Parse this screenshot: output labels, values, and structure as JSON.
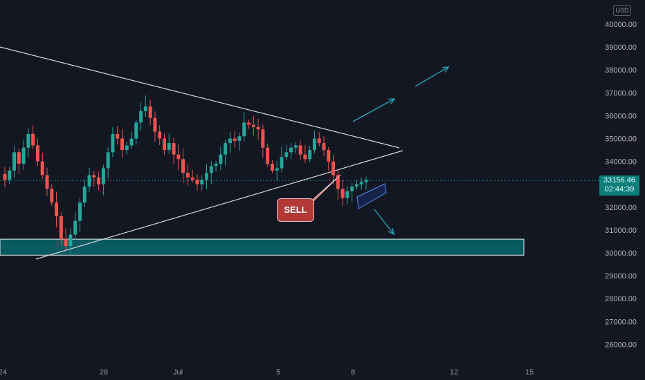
{
  "currency": "USD",
  "price_tag": {
    "price": "33156.46",
    "countdown": "02:44:39"
  },
  "annotation": {
    "text": "SELL"
  },
  "colors": {
    "background": "#131722",
    "bullish": "#26a69a",
    "bearish": "#ef5350",
    "accent": "#22a4b6",
    "zone": "#0a5a61"
  },
  "chart_data": {
    "type": "candlestick",
    "y_axis": {
      "ticks": [
        40000,
        39000,
        38000,
        37000,
        36000,
        35000,
        34000,
        33000,
        32000,
        31000,
        30000,
        29000,
        28000,
        27000,
        26000
      ],
      "tick_labels": [
        "40000.00",
        "39000.00",
        "38000.00",
        "37000.00",
        "36000.00",
        "35000.00",
        "34000.00",
        "33000.00",
        "32000.00",
        "31000.00",
        "30000.00",
        "29000.00",
        "28000.00",
        "27000.00",
        "26000.00"
      ],
      "range": [
        25000,
        41000
      ]
    },
    "x_axis": {
      "tick_labels": [
        "24",
        "28",
        "Jul",
        "5",
        "8",
        "12",
        "15"
      ]
    },
    "current_price": 33156.46,
    "support_zone": [
      29900,
      30600
    ],
    "candle_close_path": [
      33200,
      33600,
      34400,
      33900,
      34600,
      35200,
      34700,
      34000,
      33400,
      32800,
      32200,
      31600,
      30600,
      30300,
      30800,
      31400,
      32200,
      32900,
      33400,
      33300,
      33000,
      33700,
      34400,
      35200,
      35000,
      34500,
      34700,
      35000,
      35700,
      36200,
      36400,
      35900,
      35300,
      35000,
      34500,
      34800,
      34300,
      34100,
      33500,
      33300,
      33200,
      33000,
      33200,
      33500,
      33800,
      33900,
      34300,
      34800,
      35000,
      34900,
      35100,
      35700,
      35600,
      35500,
      35400,
      34600,
      33900,
      33600,
      33700,
      34200,
      34400,
      34600,
      34700,
      34300,
      34100,
      34500,
      35000,
      34800,
      34500,
      34000,
      33400,
      32800,
      32400,
      32700,
      32900,
      33000,
      33100,
      33200
    ]
  }
}
